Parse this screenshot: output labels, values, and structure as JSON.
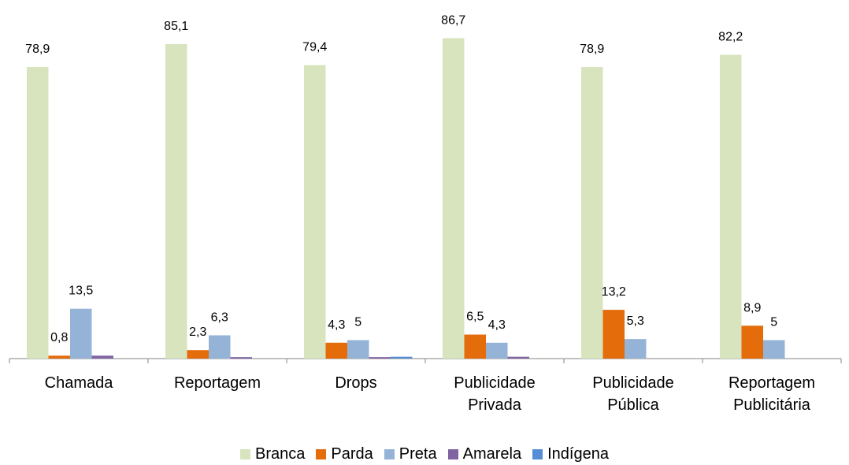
{
  "chart_data": {
    "type": "bar",
    "categories": [
      "Chamada",
      "Reportagem",
      "Drops",
      "Publicidade Privada",
      "Publicidade Pública",
      "Reportagem Publicitária"
    ],
    "series": [
      {
        "name": "Branca",
        "color": "#d7e4bd",
        "values": [
          78.9,
          85.1,
          79.4,
          86.7,
          78.9,
          82.2
        ],
        "value_labels": [
          "78,9",
          "85,1",
          "79,4",
          "86,7",
          "78,9",
          "82,2"
        ]
      },
      {
        "name": "Parda",
        "color": "#e46c0a",
        "values": [
          0.8,
          2.3,
          4.3,
          6.5,
          13.2,
          8.9
        ],
        "value_labels": [
          "0,8",
          "2,3",
          "4,3",
          "6,5",
          "13,2",
          "8,9"
        ]
      },
      {
        "name": "Preta",
        "color": "#95b3d7",
        "values": [
          13.5,
          6.3,
          5,
          4.3,
          5.3,
          5
        ],
        "value_labels": [
          "13,5",
          "6,3",
          "5",
          "4,3",
          "5,3",
          "5"
        ]
      },
      {
        "name": "Amarela",
        "color": "#8064a2",
        "values": [
          0.8,
          0.4,
          0.4,
          0.5,
          0,
          0
        ]
      },
      {
        "name": "Indígena",
        "color": "#558ed5",
        "values": [
          0,
          0,
          0.5,
          0,
          0,
          0
        ]
      }
    ],
    "ylim": [
      0,
      90
    ],
    "legend": "bottom"
  }
}
